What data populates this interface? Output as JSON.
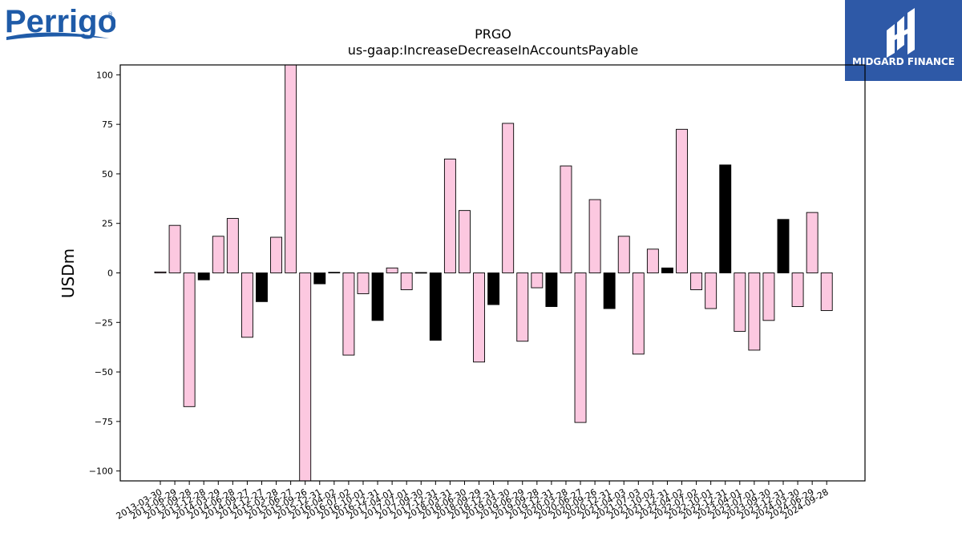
{
  "brand": {
    "name": "Perrigo"
  },
  "partner": {
    "name": "MIDGARD FINANCE"
  },
  "colors": {
    "positive_bar": "#fcc8e0",
    "negative_bar": "#000000",
    "logo_blue": "#1f5ba8",
    "partner_bg": "#2e59a7"
  },
  "chart_data": {
    "type": "bar",
    "title": "PRGO",
    "subtitle": "us-gaap:IncreaseDecreaseInAccountsPayable",
    "ylabel": "USDm",
    "xlabel": "",
    "ylim": [
      -105,
      105
    ],
    "yticks": [
      -100,
      -75,
      -50,
      -25,
      0,
      25,
      50,
      75,
      100
    ],
    "grid": false,
    "categories": [
      "2013-03-30",
      "2013-06-29",
      "2013-09-28",
      "2013-12-28",
      "2014-03-29",
      "2014-06-28",
      "2014-09-27",
      "2014-12-27",
      "2015-03-28",
      "2015-06-27",
      "2015-09-26",
      "2015-12-31",
      "2016-04-02",
      "2016-07-02",
      "2016-10-01",
      "2016-12-31",
      "2017-04-01",
      "2017-07-01",
      "2017-09-30",
      "2017-12-31",
      "2018-03-31",
      "2018-06-30",
      "2018-09-29",
      "2018-12-31",
      "2019-03-30",
      "2019-06-29",
      "2019-09-28",
      "2019-12-31",
      "2020-03-28",
      "2020-06-27",
      "2020-09-26",
      "2020-12-31",
      "2021-04-03",
      "2021-07-03",
      "2021-10-02",
      "2021-12-31",
      "2022-04-02",
      "2022-07-02",
      "2022-10-01",
      "2022-12-31",
      "2023-04-01",
      "2023-07-01",
      "2023-09-30",
      "2023-12-31",
      "2024-03-30",
      "2024-06-29",
      "2024-09-28"
    ],
    "values": [
      0.5,
      24,
      -67.5,
      -3.5,
      18.5,
      27.5,
      -32.5,
      -14.5,
      18,
      106,
      -105,
      -5.5,
      0.3,
      -41.5,
      -10.5,
      -24,
      2.5,
      -8.5,
      0.2,
      -34,
      57.5,
      31.5,
      -45,
      -16,
      75.5,
      -34.5,
      -7.5,
      -17,
      54,
      -75.5,
      37,
      -18,
      18.5,
      -41,
      12,
      2.5,
      72.5,
      -8.5,
      -18,
      54.5,
      -29.5,
      -39,
      -24,
      27,
      -17,
      30.5,
      -19
    ],
    "fills": [
      "pink",
      "pink",
      "pink",
      "black",
      "pink",
      "pink",
      "pink",
      "black",
      "pink",
      "pink",
      "pink",
      "black",
      "black",
      "pink",
      "pink",
      "black",
      "pink",
      "pink",
      "black",
      "black",
      "pink",
      "pink",
      "pink",
      "black",
      "pink",
      "pink",
      "pink",
      "black",
      "pink",
      "pink",
      "pink",
      "black",
      "pink",
      "pink",
      "pink",
      "black",
      "pink",
      "pink",
      "pink",
      "black",
      "pink",
      "pink",
      "pink",
      "black",
      "pink",
      "pink",
      "pink"
    ]
  }
}
